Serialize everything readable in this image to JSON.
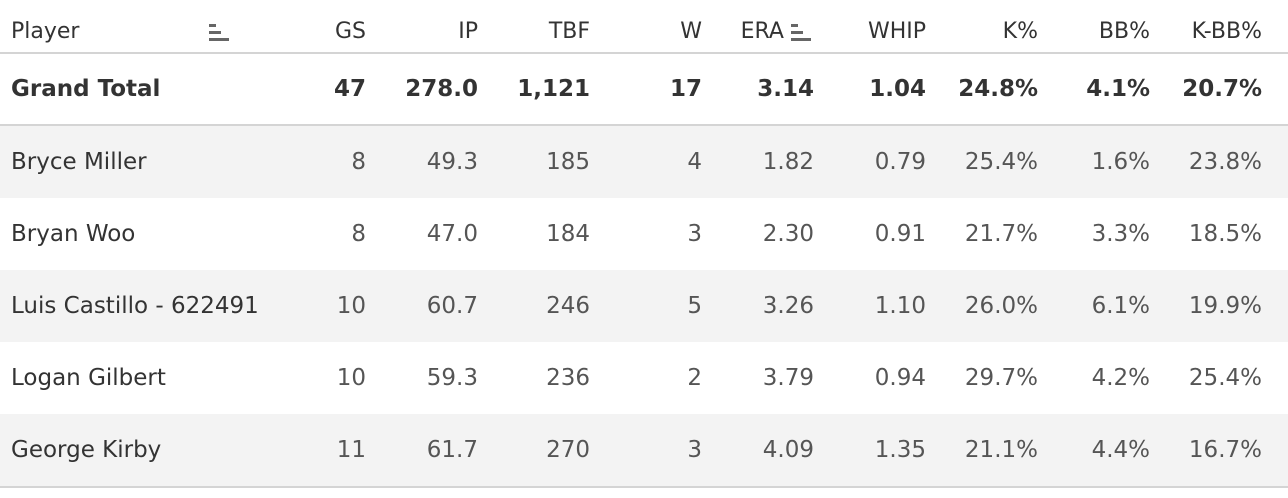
{
  "table": {
    "headers": {
      "player": "Player",
      "gs": "GS",
      "ip": "IP",
      "tbf": "TBF",
      "w": "W",
      "era": "ERA",
      "whip": "WHIP",
      "k_pct": "K%",
      "bb_pct": "BB%",
      "k_bb_pct": "K-BB%"
    },
    "sort_icons": [
      "sort-bars-icon",
      "sort-bars-icon"
    ],
    "grand_total": {
      "player": "Grand Total",
      "gs": "47",
      "ip": "278.0",
      "tbf": "1,121",
      "w": "17",
      "era": "3.14",
      "whip": "1.04",
      "k_pct": "24.8%",
      "bb_pct": "4.1%",
      "k_bb_pct": "20.7%"
    },
    "rows": [
      {
        "player": "Bryce Miller",
        "gs": "8",
        "ip": "49.3",
        "tbf": "185",
        "w": "4",
        "era": "1.82",
        "whip": "0.79",
        "k_pct": "25.4%",
        "bb_pct": "1.6%",
        "k_bb_pct": "23.8%"
      },
      {
        "player": "Bryan Woo",
        "gs": "8",
        "ip": "47.0",
        "tbf": "184",
        "w": "3",
        "era": "2.30",
        "whip": "0.91",
        "k_pct": "21.7%",
        "bb_pct": "3.3%",
        "k_bb_pct": "18.5%"
      },
      {
        "player": "Luis Castillo - 622491",
        "gs": "10",
        "ip": "60.7",
        "tbf": "246",
        "w": "5",
        "era": "3.26",
        "whip": "1.10",
        "k_pct": "26.0%",
        "bb_pct": "6.1%",
        "k_bb_pct": "19.9%"
      },
      {
        "player": "Logan Gilbert",
        "gs": "10",
        "ip": "59.3",
        "tbf": "236",
        "w": "2",
        "era": "3.79",
        "whip": "0.94",
        "k_pct": "29.7%",
        "bb_pct": "4.2%",
        "k_bb_pct": "25.4%"
      },
      {
        "player": "George Kirby",
        "gs": "11",
        "ip": "61.7",
        "tbf": "270",
        "w": "3",
        "era": "4.09",
        "whip": "1.35",
        "k_pct": "21.1%",
        "bb_pct": "4.4%",
        "k_bb_pct": "16.7%"
      }
    ]
  },
  "colors": {
    "row_shade": "#f3f3f3",
    "divider": "#d4d4d4",
    "text": "#333333"
  }
}
